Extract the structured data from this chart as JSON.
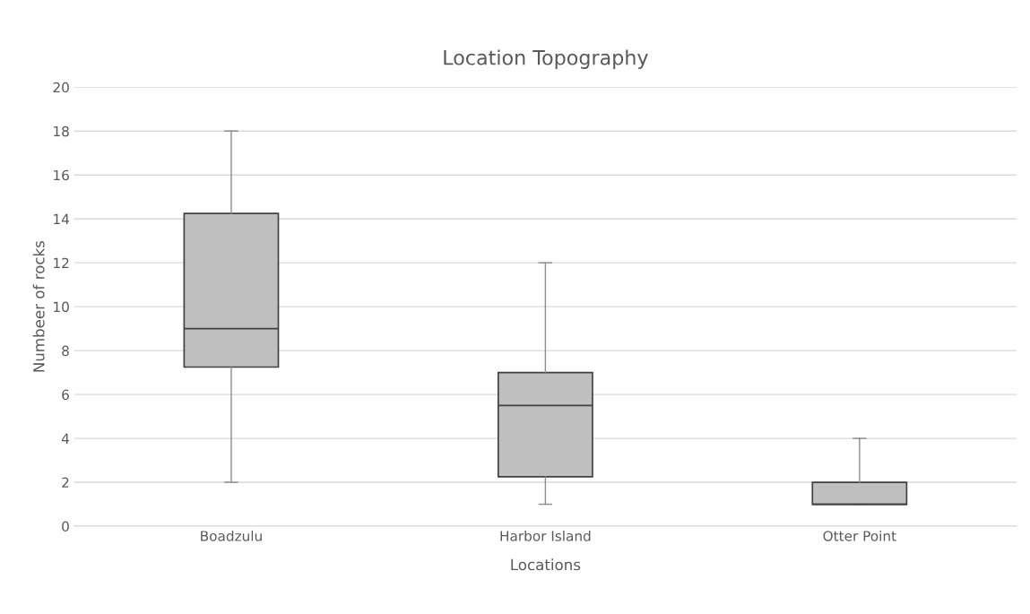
{
  "chart_data": {
    "type": "box",
    "title": "Location Topography",
    "xlabel": "Locations",
    "ylabel": "Numbeer of rocks",
    "categories": [
      "Boadzulu",
      "Harbor Island",
      "Otter Point"
    ],
    "boxes": [
      {
        "low": 2,
        "q1": 7.25,
        "median": 9,
        "q3": 14.25,
        "high": 18
      },
      {
        "low": 1,
        "q1": 2.25,
        "median": 5.5,
        "q3": 7,
        "high": 12
      },
      {
        "low": 1,
        "q1": 1,
        "median": 1,
        "q3": 2,
        "high": 4
      }
    ],
    "color": "#bfbfbf",
    "ylim": [
      0,
      20
    ],
    "yticks": [
      0,
      2,
      4,
      6,
      8,
      10,
      12,
      14,
      16,
      18,
      20
    ],
    "grid": "y"
  }
}
